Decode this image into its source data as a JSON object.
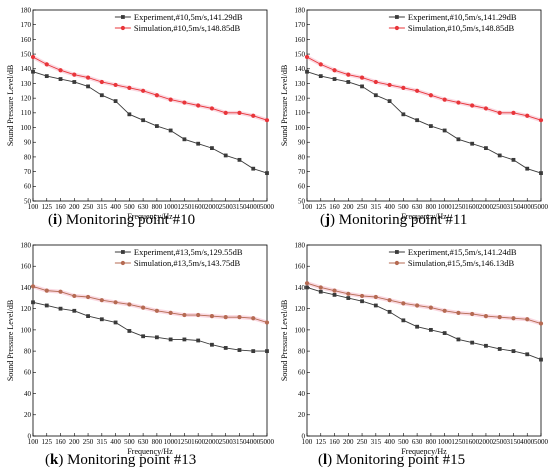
{
  "colors": {
    "experiment": "#3a3a3a",
    "simulation": "#e8353a",
    "simulation_alt": "#b56a52",
    "band": "#f5b8c8"
  },
  "chart_data": [
    {
      "type": "line",
      "caption_letter": "i",
      "caption_text": "Monitoring point #10",
      "xlabel": "Frequency/Hz",
      "ylabel": "Sound Pressure Level/dB",
      "ylim": [
        50,
        180
      ],
      "yticks": [
        50,
        60,
        70,
        80,
        90,
        100,
        110,
        120,
        130,
        140,
        150,
        160,
        170,
        180
      ],
      "categories": [
        "100",
        "125",
        "160",
        "200",
        "250",
        "315",
        "400",
        "500",
        "630",
        "800",
        "1000",
        "1250",
        "1600",
        "2000",
        "2500",
        "3150",
        "4000",
        "5000"
      ],
      "legend_position": "top-right",
      "series": [
        {
          "name": "Experiment,#10,5m/s,141.29dB",
          "marker": "square",
          "color": "#3a3a3a",
          "values": [
            138,
            135,
            133,
            131,
            128,
            122,
            118,
            109,
            105,
            101,
            98,
            92,
            89,
            86,
            81,
            78,
            72,
            69
          ]
        },
        {
          "name": "Simulation,#10,5m/s,148.85dB",
          "marker": "circle",
          "color": "#e8353a",
          "values": [
            148,
            143,
            139,
            136,
            134,
            131,
            129,
            127,
            125,
            122,
            119,
            117,
            115,
            113,
            110,
            110,
            108,
            105
          ]
        }
      ]
    },
    {
      "type": "line",
      "caption_letter": "j",
      "caption_text": "Monitoring point #11",
      "xlabel": "Frequency/Hz",
      "ylabel": "Sound Pressure Level/dB",
      "ylim": [
        50,
        180
      ],
      "yticks": [
        50,
        60,
        70,
        80,
        90,
        100,
        110,
        120,
        130,
        140,
        150,
        160,
        170,
        180
      ],
      "categories": [
        "100",
        "125",
        "160",
        "200",
        "250",
        "315",
        "400",
        "500",
        "630",
        "800",
        "1000",
        "1250",
        "1600",
        "2000",
        "2500",
        "3150",
        "4000",
        "5000"
      ],
      "legend_position": "top-right",
      "series": [
        {
          "name": "Experiment,#10,5m/s,141.29dB",
          "marker": "square",
          "color": "#3a3a3a",
          "values": [
            138,
            135,
            133,
            131,
            128,
            122,
            118,
            109,
            105,
            101,
            98,
            92,
            89,
            86,
            81,
            78,
            72,
            69
          ]
        },
        {
          "name": "Simulation,#10,5m/s,148.85dB",
          "marker": "circle",
          "color": "#e8353a",
          "values": [
            148,
            143,
            139,
            136,
            134,
            131,
            129,
            127,
            125,
            122,
            119,
            117,
            115,
            113,
            110,
            110,
            108,
            105
          ]
        }
      ]
    },
    {
      "type": "line",
      "caption_letter": "k",
      "caption_text": "Monitoring point #13",
      "xlabel": "Frequency/Hz",
      "ylabel": "Sound Pressure Level/dB",
      "ylim": [
        0,
        180
      ],
      "yticks": [
        0,
        20,
        40,
        60,
        80,
        100,
        120,
        140,
        160,
        180
      ],
      "categories": [
        "100",
        "125",
        "160",
        "200",
        "250",
        "315",
        "400",
        "500",
        "630",
        "800",
        "1000",
        "1250",
        "1600",
        "2000",
        "2500",
        "3150",
        "4000",
        "5000"
      ],
      "legend_position": "top-right",
      "series": [
        {
          "name": "Experiment,#13,5m/s,129.55dB",
          "marker": "square",
          "color": "#3a3a3a",
          "values": [
            126,
            123,
            120,
            118,
            113,
            110,
            107,
            99,
            94,
            93,
            91,
            91,
            90,
            86,
            83,
            81,
            80,
            80
          ]
        },
        {
          "name": "Simulation,#13,5m/s,143.75dB",
          "marker": "circle",
          "color": "#b56a52",
          "values": [
            141,
            137,
            136,
            132,
            131,
            128,
            126,
            124,
            121,
            118,
            116,
            114,
            114,
            113,
            112,
            112,
            111,
            107
          ]
        }
      ]
    },
    {
      "type": "line",
      "caption_letter": "l",
      "caption_text": "Monitoring point #15",
      "xlabel": "Frequency/Hz",
      "ylabel": "Sound Pressure Level/dB",
      "ylim": [
        0,
        180
      ],
      "yticks": [
        0,
        20,
        40,
        60,
        80,
        100,
        120,
        140,
        160,
        180
      ],
      "categories": [
        "100",
        "125",
        "160",
        "200",
        "250",
        "315",
        "400",
        "500",
        "630",
        "800",
        "1000",
        "1250",
        "1600",
        "2000",
        "2500",
        "3150",
        "4000",
        "5000"
      ],
      "legend_position": "top-right",
      "series": [
        {
          "name": "Experiment,#15,5m/s,141.24dB",
          "marker": "square",
          "color": "#3a3a3a",
          "values": [
            140,
            136,
            133,
            130,
            127,
            123,
            117,
            109,
            103,
            100,
            97,
            91,
            88,
            85,
            82,
            80,
            77,
            72
          ]
        },
        {
          "name": "Simulation,#15,5m/s,146.13dB",
          "marker": "circle",
          "color": "#b56a52",
          "values": [
            144,
            140,
            137,
            134,
            132,
            131,
            128,
            125,
            123,
            121,
            118,
            116,
            115,
            113,
            112,
            111,
            110,
            106
          ]
        }
      ]
    }
  ]
}
